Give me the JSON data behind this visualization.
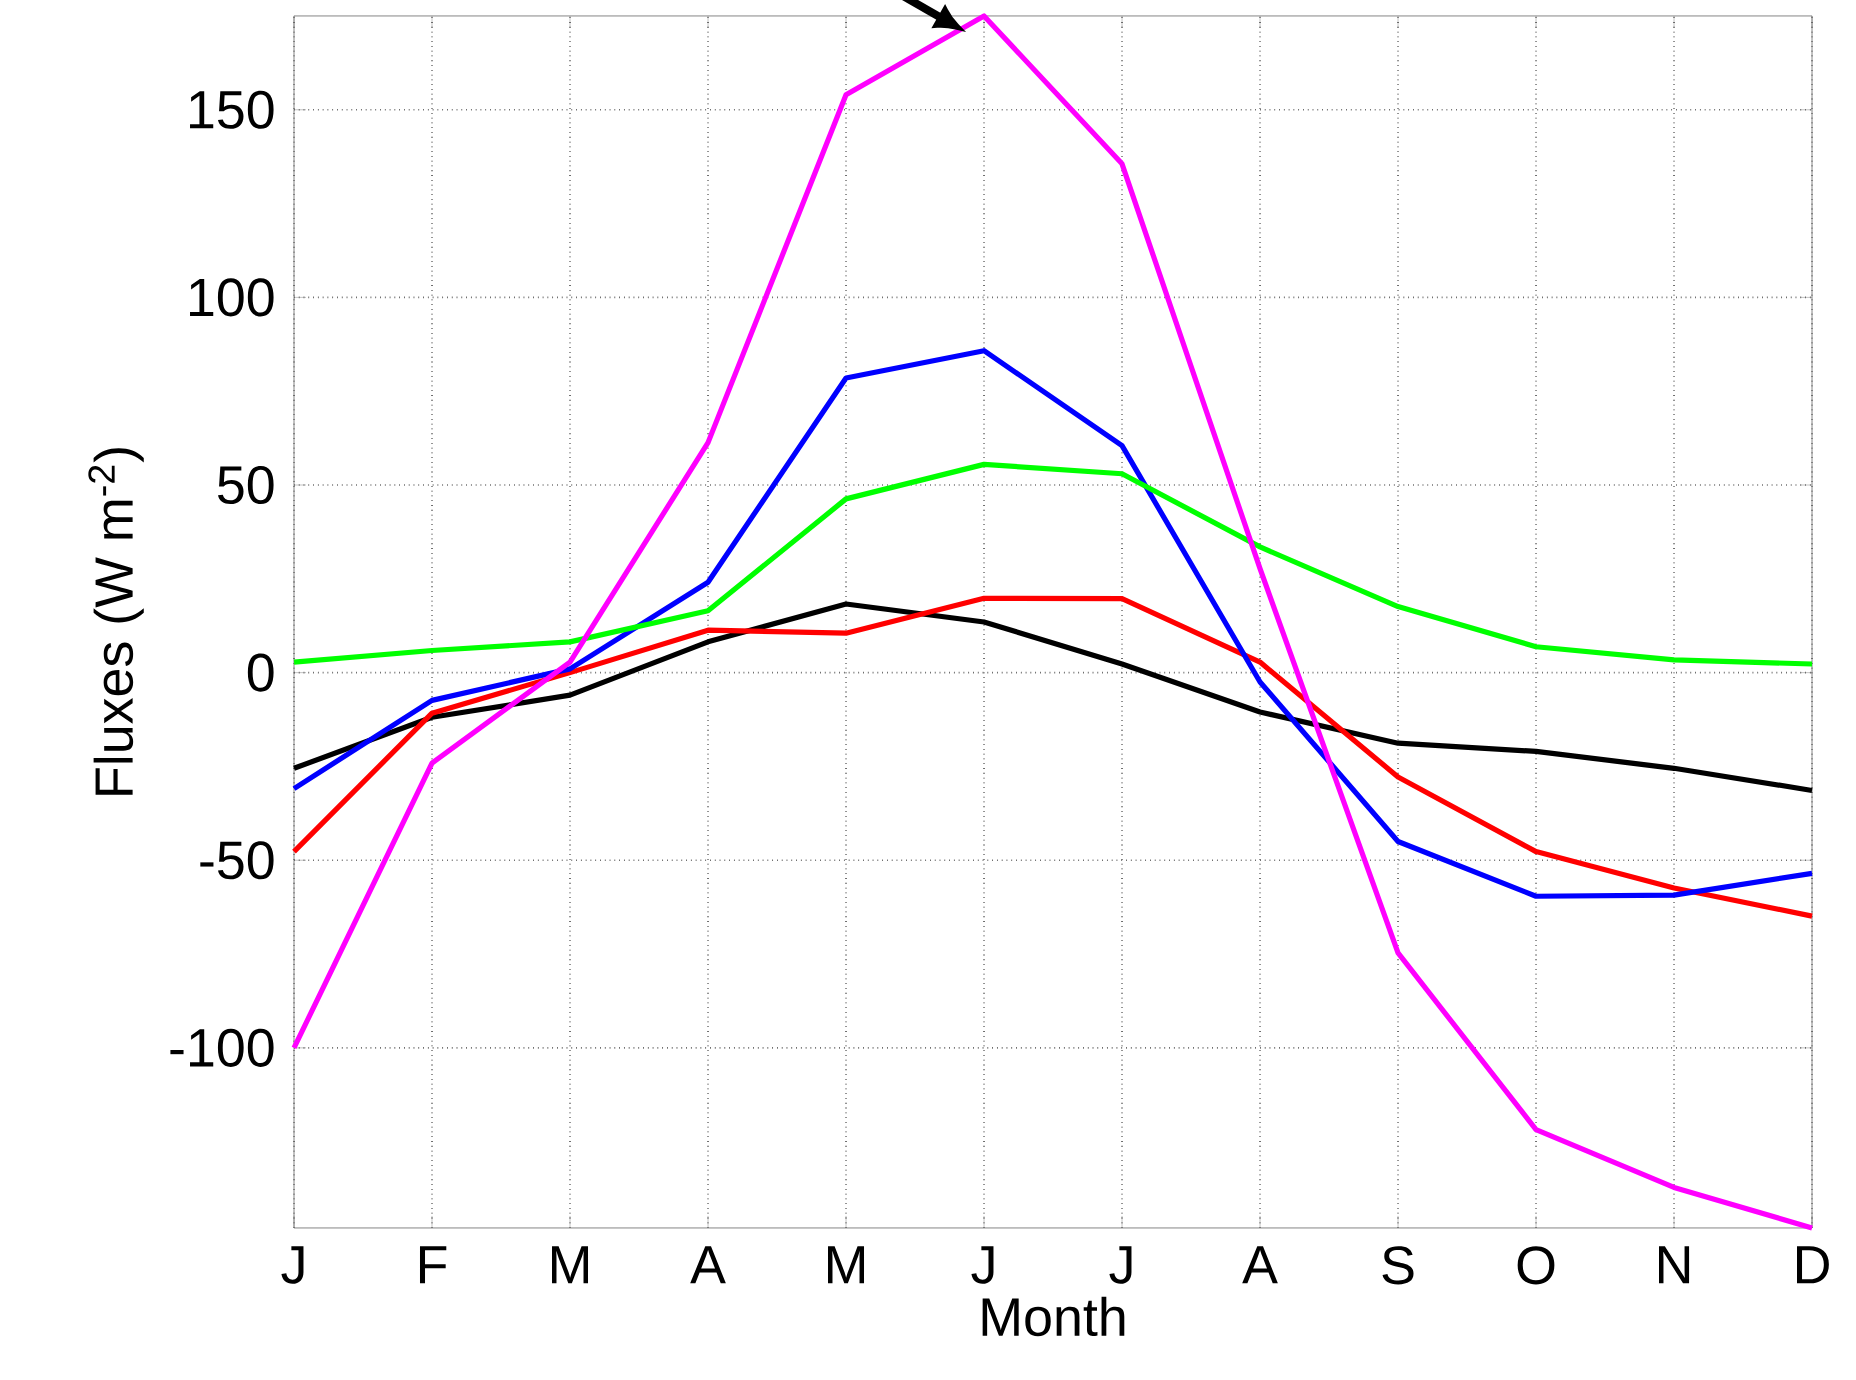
{
  "chart_data": {
    "type": "line",
    "xlabel": "Month",
    "ylabel": "Fluxes (W m$^{-2}$)",
    "categories": [
      "J",
      "F",
      "M",
      "A",
      "M",
      "J",
      "J",
      "A",
      "S",
      "O",
      "N",
      "D"
    ],
    "ylim": [
      -148,
      175
    ],
    "yticks": [
      -100,
      -50,
      0,
      50,
      100,
      150
    ],
    "grid": true,
    "line_style": "solid",
    "series": [
      {
        "color": "#000000",
        "values": [
          -25.5,
          -11.9,
          -6,
          8.2,
          18.3,
          13.5,
          2.3,
          -10.5,
          -18.8,
          -21,
          -25.5,
          -31.4
        ]
      },
      {
        "color": "#ff0000",
        "values": [
          -47.7,
          -10.8,
          0,
          11.3,
          10.5,
          19.8,
          19.7,
          2.8,
          -27.8,
          -47.7,
          -57.4,
          -64.9
        ]
      },
      {
        "color": "#0000ff",
        "values": [
          -30.9,
          -7.4,
          1,
          24.1,
          78.5,
          85.8,
          60.5,
          -2.5,
          -45,
          -59.6,
          -59.3,
          -53.5
        ]
      },
      {
        "color": "#00ff00",
        "values": [
          2.8,
          5.9,
          8.2,
          16.5,
          46.3,
          55.5,
          53,
          33.5,
          17.6,
          6.9,
          3.4,
          2.3
        ]
      },
      {
        "color": "#ff00ff",
        "values": [
          -100,
          -24.1,
          2.8,
          61.3,
          154,
          175,
          135.6,
          27.7,
          -74.7,
          -121.8,
          -137.2,
          -148
        ]
      }
    ]
  }
}
